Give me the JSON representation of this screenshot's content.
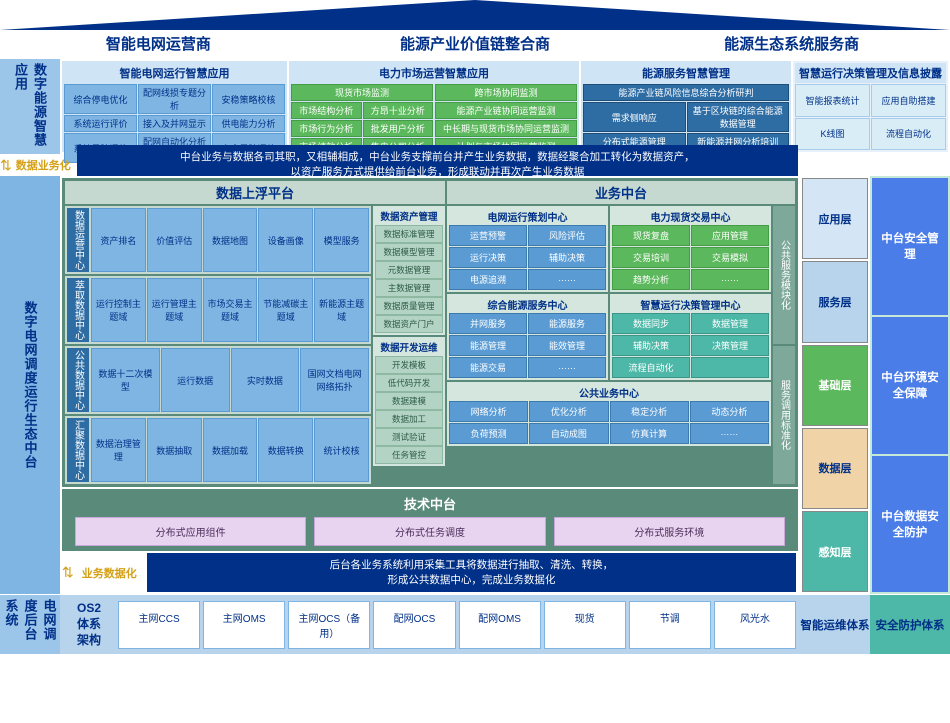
{
  "top": {
    "h1": "智能电网运营商",
    "h2": "能源产业价值链整合商",
    "h3": "能源生态系统服务商"
  },
  "app": {
    "side": "数字能源智慧应用",
    "c1": {
      "title": "智能电网运行智慧应用",
      "cells": [
        "综合停电优化",
        "配网线损专题分析",
        "安稳策略校核",
        "系统运行评价",
        "接入及并网显示",
        "供电能力分析",
        "系统风险评估",
        "配网自动化分析评价",
        "安全风险评估"
      ]
    },
    "c2": {
      "title": "电力市场运营智慧应用",
      "g1": [
        "现货市场监测",
        "市场结构分析",
        "方昂十业分析",
        "市场行为分析",
        "批发用户分析",
        "市场绩效分析",
        "售电公司分析"
      ],
      "g2": [
        "跨市场协同监测",
        "能源产业链协同运营监测",
        "中长期与现货市场协同运营监测",
        "计划与市场协同运营监测"
      ]
    },
    "c3": {
      "title": "能源服务智慧管理",
      "cells": [
        "能源产业链风险信息综合分析研判",
        "需求侧响应",
        "基于区块链的综合能源数据管理",
        "分布式能源管理",
        "新能源并网分析培训"
      ]
    },
    "c4": {
      "title": "智慧运行决策管理及信息披露",
      "cells": [
        "智能报表统计",
        "应用自助搭建",
        "K线图",
        "流程自动化"
      ]
    }
  },
  "arrow1": "数据业务化",
  "banner1": "中台业务与数据各司其职，又相辅相成，中台业务支撑前台并产生业务数据，数据经聚合加工转化为数据资产，\n以资产服务方式提供给前台业务，形成联动并再次产生业务数据",
  "mid": {
    "side": "数字电网调度运行生态中台",
    "dataPlat": {
      "title": "数据上浮平台",
      "rows": [
        {
          "label": "数据运营中心",
          "cells": [
            "资产排名",
            "价值评估",
            "数据地图",
            "设备画像",
            "模型服务"
          ]
        },
        {
          "label": "萃取数据中心",
          "cells": [
            "运行控制主题域",
            "运行管理主题域",
            "市场交易主题域",
            "节能减碳主题域",
            "新能源主题域"
          ]
        },
        {
          "label": "公共数据中心",
          "cells": [
            "数据十二次模型",
            "运行数据",
            "实时数据",
            "国网文档电网网络拓扑"
          ]
        },
        {
          "label": "汇聚数据中心",
          "cells": [
            "数据治理管理",
            "数据抽取",
            "数据加载",
            "数据转换",
            "统计校核"
          ]
        }
      ],
      "asset": {
        "title": "数据资产管理",
        "cells": [
          "数据标准管理",
          "数据模型管理",
          "元数据管理",
          "主数据管理",
          "数据质量管理",
          "数据资产门户"
        ]
      },
      "dev": {
        "title": "数据开发运维",
        "cells": [
          "开发模板",
          "低代码开发",
          "数据建模",
          "数据加工",
          "测试验证",
          "任务管控"
        ]
      }
    },
    "bizPlat": {
      "title": "业务中台",
      "centers": [
        {
          "title": "电网运行策划中心",
          "cells": [
            "运营预警",
            "风险评估",
            "运行决策",
            "辅助决策",
            "电源追溯",
            "……"
          ],
          "color": "b"
        },
        {
          "title": "电力现货交易中心",
          "cells": [
            "现货复盘",
            "应用管理",
            "交易培训",
            "交易模拟",
            "趋势分析",
            "……"
          ],
          "color": "g"
        },
        {
          "title": "综合能源服务中心",
          "cells": [
            "并网服务",
            "能源服务",
            "能源管理",
            "能效管理",
            "能源交易",
            "……"
          ],
          "color": "b"
        },
        {
          "title": "智慧运行决策管理中心",
          "cells": [
            "数据同步",
            "数据管理",
            "辅助决策",
            "决策管理",
            "流程自动化",
            ""
          ],
          "color": "t"
        }
      ],
      "pub": {
        "title": "公共业务中心",
        "cells": [
          "网络分析",
          "优化分析",
          "稳定分析",
          "动态分析",
          "负荷预测",
          "自动成图",
          "仿真计算",
          "……"
        ]
      },
      "vlabels": [
        "公共服务模块化",
        "服务调用标准化"
      ]
    },
    "tech": {
      "title": "技术中台",
      "cells": [
        "分布式应用组件",
        "分布式任务调度",
        "分布式服务环境"
      ]
    }
  },
  "layers": [
    "应用层",
    "服务层",
    "基础层",
    "数据层",
    "感知层"
  ],
  "layerColors": [
    "#d4e6f5",
    "#b8d4ed",
    "#5cb85c",
    "#f0d4a8",
    "#4db8a8"
  ],
  "security": [
    "中台安全管理",
    "中台环境安全保障",
    "中台数据安全防护"
  ],
  "arrow2": "业务数据化",
  "banner2": "后台各业务系统利用采集工具将数据进行抽取、清洗、转换，\n形成公共数据中心，完成业务数据化",
  "bottom": {
    "side": "电网调度后台系统",
    "os2": "OS2\n体系\n架构",
    "cells": [
      "主网CCS",
      "主网OMS",
      "主网OCS（备用）",
      "配网OCS",
      "配网OMS",
      "现货",
      "节调",
      "风光水"
    ],
    "right": "智能运维体系",
    "far": "安全防护体系"
  }
}
